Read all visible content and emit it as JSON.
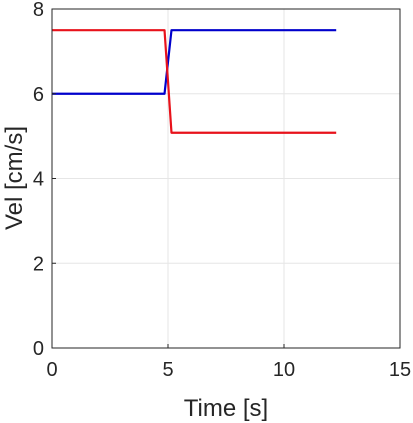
{
  "chart_data": {
    "type": "line",
    "title": "",
    "xlabel": "Time [s]",
    "ylabel": "Vel [cm/s]",
    "xlim": [
      0,
      15
    ],
    "ylim": [
      0,
      8
    ],
    "xticks": [
      0,
      5,
      10,
      15
    ],
    "yticks": [
      0,
      2,
      4,
      6,
      8
    ],
    "grid": true,
    "series": [
      {
        "color": "#0000cc",
        "x": [
          0,
          4.85,
          5.15,
          12.25
        ],
        "y": [
          6.0,
          6.0,
          7.5,
          7.5
        ]
      },
      {
        "color": "#e8121b",
        "x": [
          0,
          4.85,
          5.15,
          12.25
        ],
        "y": [
          7.5,
          7.5,
          5.08,
          5.08
        ]
      }
    ]
  }
}
